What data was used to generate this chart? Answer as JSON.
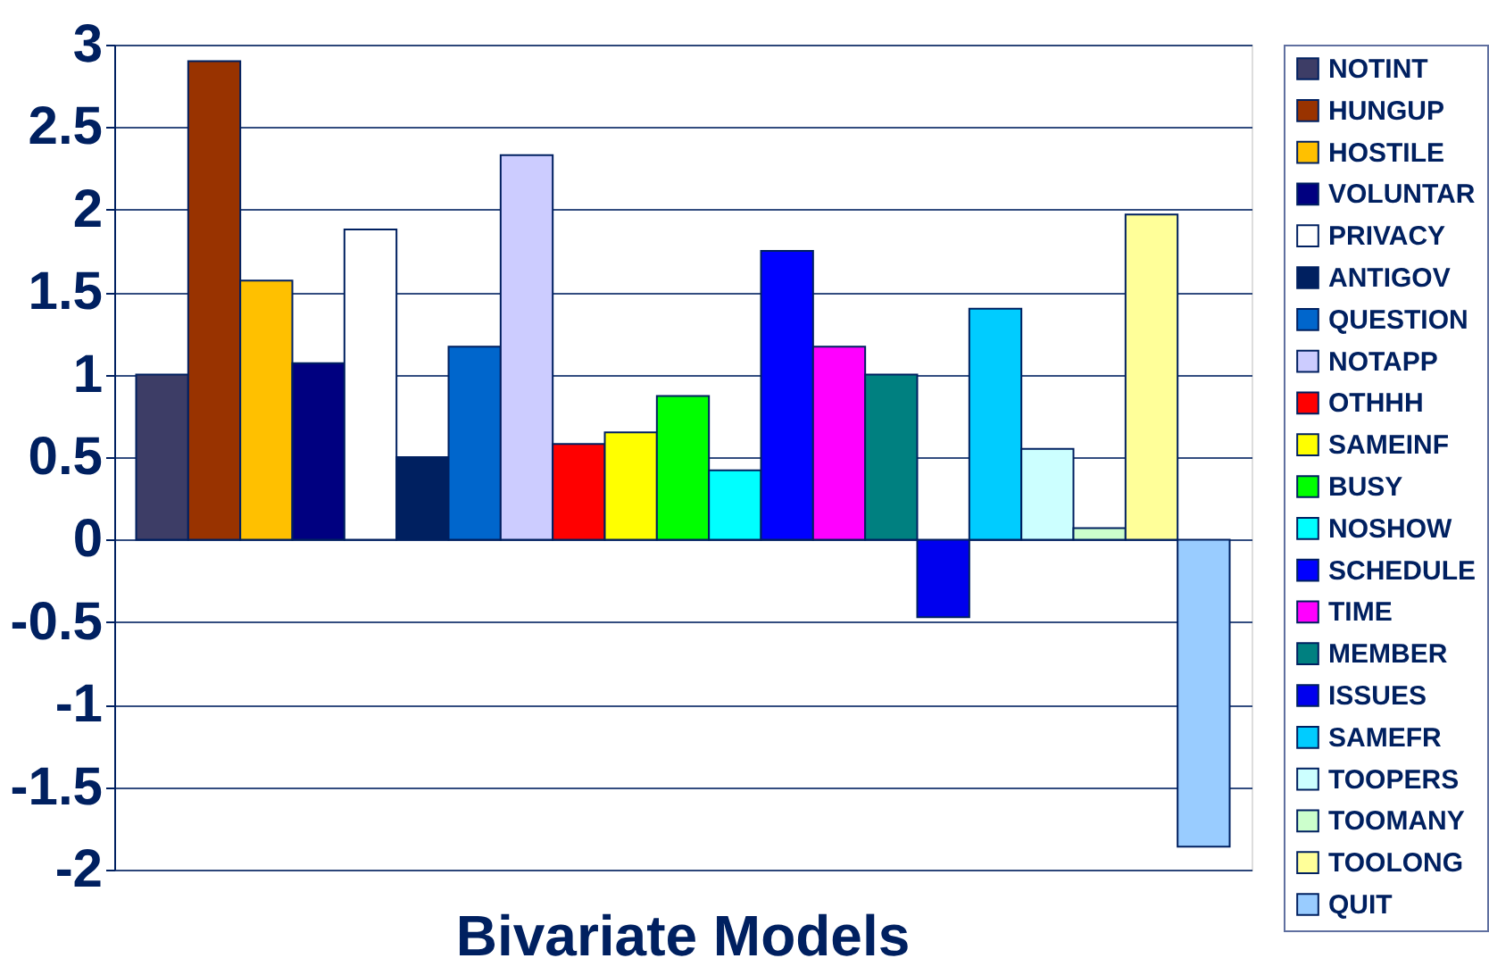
{
  "chart_data": {
    "type": "bar",
    "title": "Bivariate Models",
    "categories": [
      null
    ],
    "series": [
      {
        "name": "NOTINT",
        "color": "#3d3d66",
        "values": [
          1.0
        ]
      },
      {
        "name": "HUNGUP",
        "color": "#993300",
        "values": [
          2.9
        ]
      },
      {
        "name": "HOSTILE",
        "color": "#ffc000",
        "values": [
          1.57
        ]
      },
      {
        "name": "VOLUNTAR",
        "color": "#000080",
        "values": [
          1.07
        ]
      },
      {
        "name": "PRIVACY",
        "color": "#ffffff",
        "values": [
          1.88
        ]
      },
      {
        "name": "ANTIGOV",
        "color": "#002060",
        "values": [
          0.5
        ]
      },
      {
        "name": "QUESTION",
        "color": "#0066cc",
        "values": [
          1.17
        ]
      },
      {
        "name": "NOTAPP",
        "color": "#ccccff",
        "values": [
          2.33
        ]
      },
      {
        "name": "OTHHH",
        "color": "#ff0000",
        "values": [
          0.58
        ]
      },
      {
        "name": "SAMEINF",
        "color": "#ffff00",
        "values": [
          0.65
        ]
      },
      {
        "name": "BUSY",
        "color": "#00ff00",
        "values": [
          0.87
        ]
      },
      {
        "name": "NOSHOW",
        "color": "#00ffff",
        "values": [
          0.42
        ]
      },
      {
        "name": "SCHEDULE",
        "color": "#0000ff",
        "values": [
          1.75
        ]
      },
      {
        "name": "TIME",
        "color": "#ff00ff",
        "values": [
          1.17
        ]
      },
      {
        "name": "MEMBER",
        "color": "#008080",
        "values": [
          1.0
        ]
      },
      {
        "name": "ISSUES",
        "color": "#0000ee",
        "values": [
          -0.47
        ]
      },
      {
        "name": "SAMEFR",
        "color": "#00ccff",
        "values": [
          1.4
        ]
      },
      {
        "name": "TOOPERS",
        "color": "#ccffff",
        "values": [
          0.55
        ]
      },
      {
        "name": "TOOMANY",
        "color": "#ccffcc",
        "values": [
          0.07
        ]
      },
      {
        "name": "TOOLONG",
        "color": "#ffff99",
        "values": [
          1.97
        ]
      },
      {
        "name": "QUIT",
        "color": "#99ccff",
        "values": [
          -1.86
        ]
      }
    ],
    "ylim": [
      -2,
      3
    ],
    "yticks": [
      -2,
      -1.5,
      -1,
      -0.5,
      0,
      0.5,
      1,
      1.5,
      2,
      2.5,
      3
    ],
    "grid": "y",
    "legend": "right"
  }
}
